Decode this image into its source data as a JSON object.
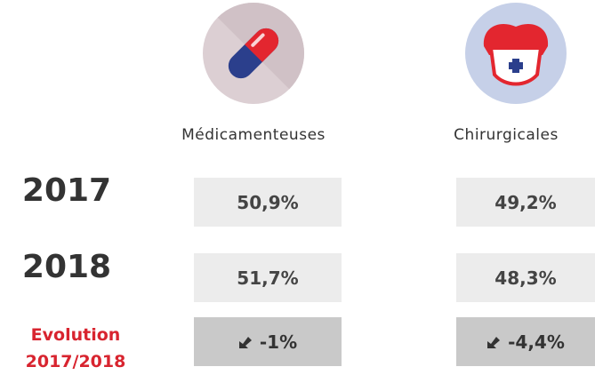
{
  "columns": [
    "Médicamenteuses",
    "Chirurgicales"
  ],
  "rows": [
    {
      "label": "2017",
      "values": [
        "50,9%",
        "49,2%"
      ]
    },
    {
      "label": "2018",
      "values": [
        "51,7%",
        "48,3%"
      ]
    },
    {
      "label_lines": [
        "Evolution",
        "2017/2018"
      ],
      "values": [
        "-1%",
        "-4,4%"
      ]
    }
  ]
}
